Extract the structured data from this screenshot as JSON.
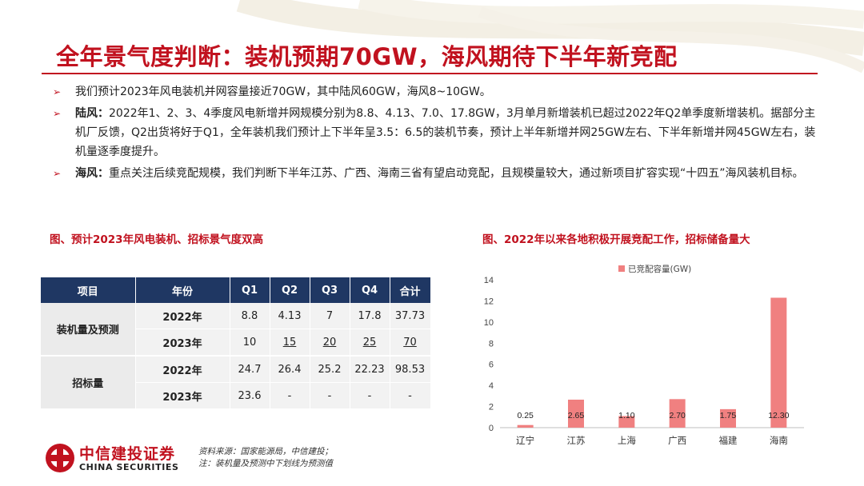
{
  "title": "全年景气度判断：装机预期70GW，海风期待下半年新竞配",
  "bullets": [
    {
      "head": "",
      "text": "我们预计2023年风电装机并网容量接近70GW，其中陆风60GW，海风8~10GW。"
    },
    {
      "head": "陆风：",
      "text": "2022年1、2、3、4季度风电新增并网规模分别为8.8、4.13、7.0、17.8GW，3月单月新增装机已超过2022年Q2单季度新增装机。据部分主机厂反馈，Q2出货将好于Q1，全年装机我们预计上下半年呈3.5：6.5的装机节奏，预计上半年新增并网25GW左右、下半年新增并网45GW左右，装机量逐季度提升。"
    },
    {
      "head": "海风：",
      "text": "重点关注后续竞配规模，我们判断下半年江苏、广西、海南三省有望启动竞配，且规模量较大，通过新项目扩容实现“十四五”海风装机目标。"
    }
  ],
  "left_caption": "图、预计2023年风电装机、招标景气度双高",
  "right_caption": "图、2022年以来各地积极开展竞配工作，招标储备量大",
  "table": {
    "headers": [
      "项目",
      "年份",
      "Q1",
      "Q2",
      "Q3",
      "Q4",
      "合计"
    ],
    "groups": [
      {
        "label": "装机量及预测",
        "rows": [
          {
            "year": "2022年",
            "cells": [
              "8.8",
              "4.13",
              "7",
              "17.8",
              "37.73"
            ],
            "forecast": false
          },
          {
            "year": "2023年",
            "cells": [
              "10",
              "15",
              "20",
              "25",
              "70"
            ],
            "forecast": true
          }
        ]
      },
      {
        "label": "招标量",
        "rows": [
          {
            "year": "2022年",
            "cells": [
              "24.7",
              "26.4",
              "25.2",
              "22.23",
              "98.53"
            ],
            "forecast": false
          },
          {
            "year": "2023年",
            "cells": [
              "23.6",
              "-",
              "-",
              "-",
              "-"
            ],
            "forecast": false
          }
        ]
      }
    ]
  },
  "chart_data": {
    "type": "bar",
    "categories": [
      "辽宁",
      "江苏",
      "上海",
      "广西",
      "福建",
      "海南"
    ],
    "series": [
      {
        "name": "已竞配容量(GW)",
        "values": [
          0.25,
          2.65,
          1.1,
          2.7,
          1.75,
          12.3
        ]
      }
    ],
    "data_labels": [
      "0.25",
      "2.65",
      "1.10",
      "2.70",
      "1.75",
      "12.30"
    ],
    "ylim": [
      0,
      14
    ],
    "yticks": [
      0,
      2,
      4,
      6,
      8,
      10,
      12,
      14
    ],
    "legend_position": "top-left",
    "grid": false,
    "color": "#f08080"
  },
  "footer": {
    "brand_cn": "中信建投证券",
    "brand_en": "CHINA SECURITIES",
    "source_line1": "资料来源：国家能源局，中信建投；",
    "source_line2": "注：装机量及预测中下划线为预测值"
  },
  "colors": {
    "accent": "#c1121f",
    "header": "#1f3763"
  }
}
